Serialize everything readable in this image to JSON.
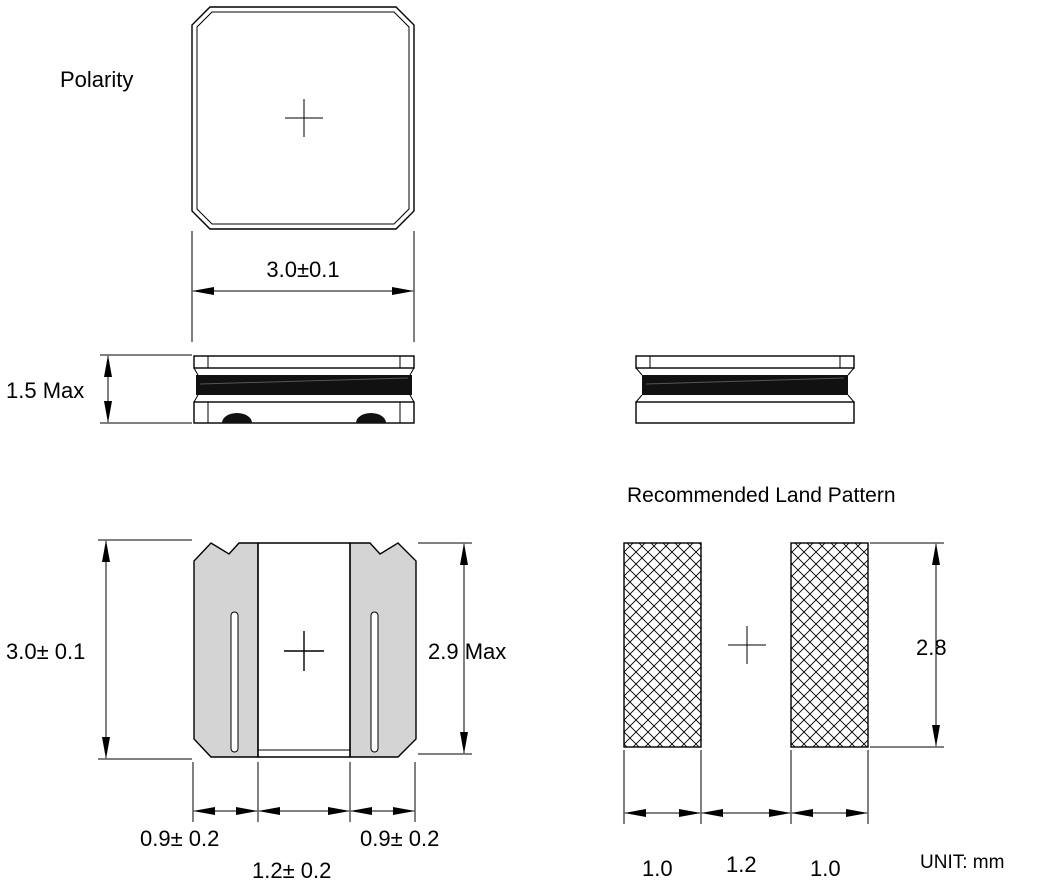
{
  "labels": {
    "polarity": "Polarity",
    "top_width": "3.0±0.1",
    "height": "1.5 Max",
    "bottom_height": "3.0± 0.1",
    "inner_height": "2.9 Max",
    "terminal_left": "0.9± 0.2",
    "center_gap": "1.2± 0.2",
    "terminal_right": "0.9± 0.2",
    "land_title": "Recommended Land Pattern",
    "land_height": "2.8",
    "land_pad_left": "1.0",
    "land_gap": "1.2",
    "land_pad_right": "1.0",
    "unit": "UNIT:  mm"
  },
  "colors": {
    "line": "#000000",
    "terminal_fill": "#d4d4d4",
    "winding": "#111111"
  }
}
